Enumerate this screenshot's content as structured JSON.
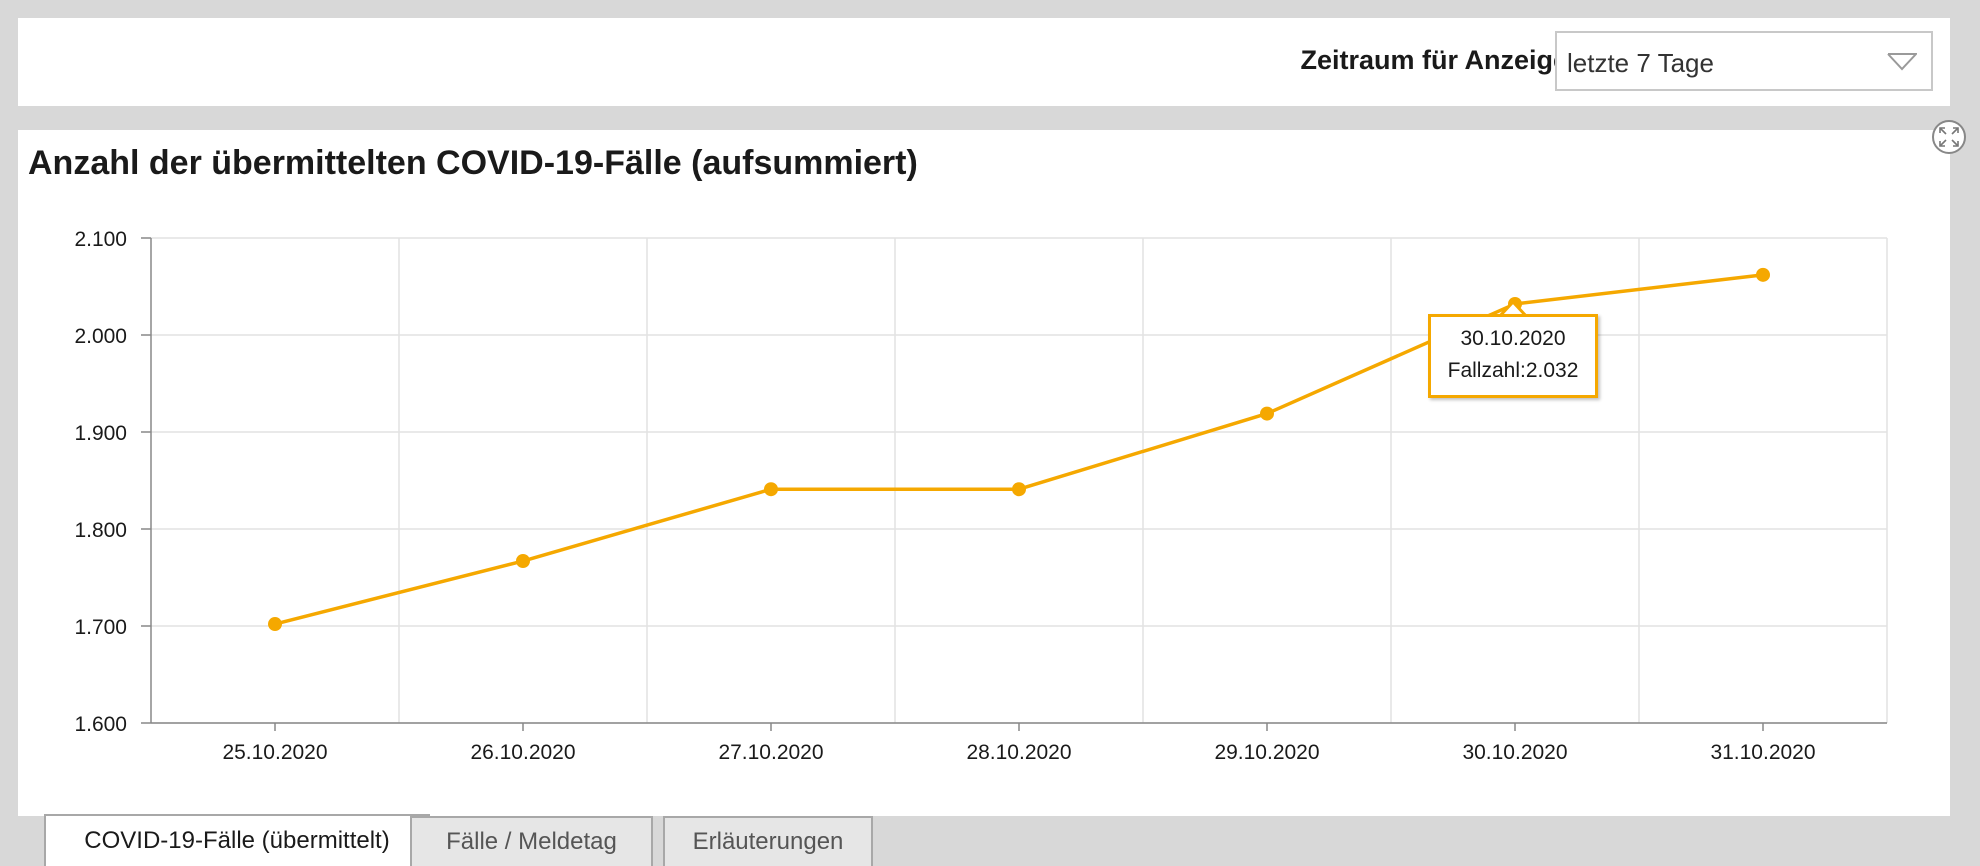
{
  "header": {
    "period_label": "Zeitraum für Anzeige:",
    "period_value": "letzte 7 Tage"
  },
  "panel": {
    "title": "Anzahl der übermittelten COVID-19-Fälle (aufsummiert)",
    "expand_icon": "expand-icon"
  },
  "tooltip": {
    "date": "30.10.2020",
    "value_text": "Fallzahl:2.032"
  },
  "tabs": [
    {
      "label": "COVID-19-Fälle (übermittelt)",
      "active": true
    },
    {
      "label": "Fälle / Meldetag",
      "active": false
    },
    {
      "label": "Erläuterungen",
      "active": false
    }
  ],
  "colors": {
    "line": "#f5a800",
    "grid": "#e2e2e2",
    "axis": "#888888"
  },
  "chart_data": {
    "type": "line",
    "title": "Anzahl der übermittelten COVID-19-Fälle (aufsummiert)",
    "xlabel": "",
    "ylabel": "",
    "categories": [
      "25.10.2020",
      "26.10.2020",
      "27.10.2020",
      "28.10.2020",
      "29.10.2020",
      "30.10.2020",
      "31.10.2020"
    ],
    "series": [
      {
        "values": [
          1702,
          1767,
          1841,
          1841,
          1919,
          2032,
          2062
        ]
      }
    ],
    "ylim": [
      1600,
      2100
    ],
    "yticks": [
      1600,
      1700,
      1800,
      1900,
      2000,
      2100
    ],
    "ytick_labels": [
      "1.600",
      "1.700",
      "1.800",
      "1.900",
      "2.000",
      "2.100"
    ],
    "grid": true,
    "legend": "none"
  }
}
